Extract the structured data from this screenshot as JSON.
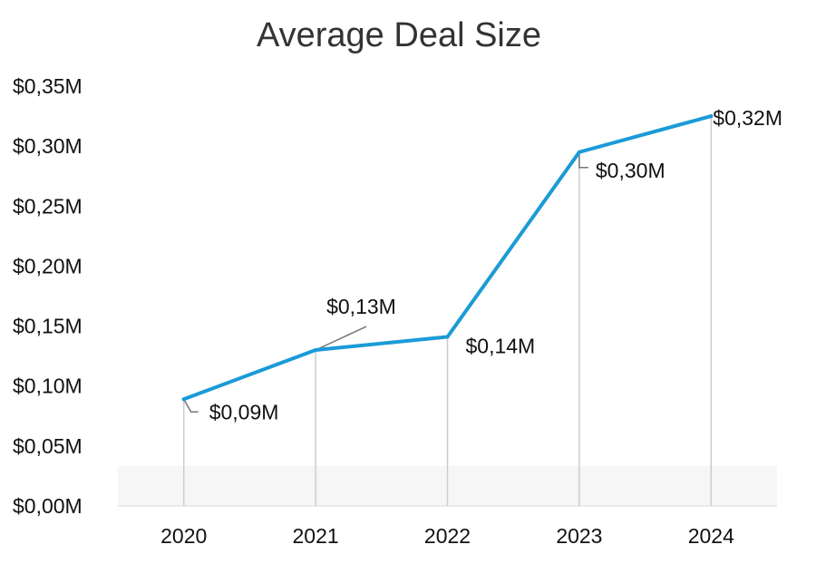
{
  "chart_data": {
    "type": "line",
    "title": "Average Deal Size",
    "xlabel": "",
    "ylabel": "",
    "categories": [
      "2020",
      "2021",
      "2022",
      "2023",
      "2024"
    ],
    "series": [
      {
        "values": [
          0.089,
          0.13,
          0.141,
          0.295,
          0.325
        ],
        "labels": [
          "$0,09M",
          "$0,13M",
          "$0,14M",
          "$0,30M",
          "$0,32M"
        ],
        "color": "#1a9bd7"
      }
    ],
    "yticks": [
      0,
      0.05,
      0.1,
      0.15,
      0.2,
      0.25,
      0.3,
      0.35
    ],
    "ytick_labels": [
      "$0,00M",
      "$0,05M",
      "$0,10M",
      "$0,15M",
      "$0,20M",
      "$0,25M",
      "$0,30M",
      "$0,35M"
    ],
    "ylim": [
      0,
      0.35
    ],
    "grid": false,
    "drop_lines": true,
    "drop_line_color": "#cccccc",
    "leader_line_color": "#777777"
  }
}
